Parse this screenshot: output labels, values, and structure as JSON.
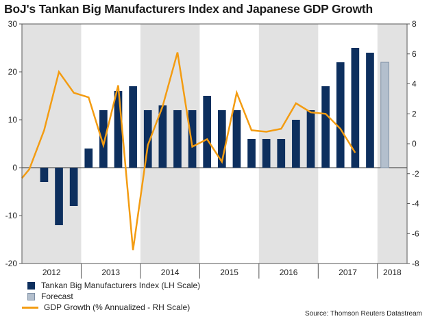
{
  "chart_data": {
    "type": "bar+line",
    "title": "BoJ's Tankan Big Manufacturers Index and Japanese GDP Growth",
    "source": "Source: Thomson Reuters Datastream",
    "left_axis": {
      "min": -20,
      "max": 30,
      "ticks": [
        -20,
        -10,
        0,
        10,
        20,
        30
      ]
    },
    "right_axis": {
      "min": -8,
      "max": 8,
      "ticks": [
        -8,
        -6,
        -4,
        -2,
        0,
        2,
        4,
        6,
        8
      ]
    },
    "years": [
      "2012",
      "2013",
      "2014",
      "2015",
      "2016",
      "2017",
      "2018"
    ],
    "quarters": [
      "2012Q1",
      "2012Q2",
      "2012Q3",
      "2012Q4",
      "2013Q1",
      "2013Q2",
      "2013Q3",
      "2013Q4",
      "2014Q1",
      "2014Q2",
      "2014Q3",
      "2014Q4",
      "2015Q1",
      "2015Q2",
      "2015Q3",
      "2015Q4",
      "2016Q1",
      "2016Q2",
      "2016Q3",
      "2016Q4",
      "2017Q1",
      "2017Q2",
      "2017Q3",
      "2017Q4",
      "2018Q1",
      "2018Q2"
    ],
    "series": [
      {
        "name": "Tankan Big Manufacturers Index (LH Scale)",
        "axis": "left",
        "kind": "bar",
        "color": "#0d2f5e",
        "values": [
          null,
          -3,
          -12,
          -8,
          4,
          12,
          16,
          17,
          12,
          13,
          12,
          12,
          15,
          12,
          12,
          6,
          6,
          6,
          10,
          12,
          17,
          22,
          25,
          24,
          null,
          null
        ]
      },
      {
        "name": "Forecast",
        "axis": "left",
        "kind": "bar",
        "color": "#b3bfcd",
        "border": "#7e8fa4",
        "values": [
          null,
          null,
          null,
          null,
          null,
          null,
          null,
          null,
          null,
          null,
          null,
          null,
          null,
          null,
          null,
          null,
          null,
          null,
          null,
          null,
          null,
          null,
          null,
          null,
          22,
          null
        ]
      },
      {
        "name": "GDP Growth (% Annualized - RH Scale)",
        "axis": "right",
        "kind": "line",
        "color": "#f39c12",
        "points": [
          [
            -0.5,
            -2.3
          ],
          [
            0,
            -1.7
          ],
          [
            1,
            0.9
          ],
          [
            2,
            4.8
          ],
          [
            3,
            3.4
          ],
          [
            4,
            3.1
          ],
          [
            5,
            -0.1
          ],
          [
            6,
            3.9
          ],
          [
            7,
            -7.1
          ],
          [
            8,
            -0.1
          ],
          [
            9,
            2.5
          ],
          [
            10,
            6.1
          ],
          [
            11,
            -0.2
          ],
          [
            12,
            0.3
          ],
          [
            13,
            -1.2
          ],
          [
            14,
            3.4
          ],
          [
            15,
            0.9
          ],
          [
            16,
            0.8
          ],
          [
            17,
            1.0
          ],
          [
            18,
            2.7
          ],
          [
            19,
            2.1
          ],
          [
            20,
            2.0
          ],
          [
            21,
            1.0
          ],
          [
            22,
            -0.6
          ]
        ]
      }
    ]
  }
}
